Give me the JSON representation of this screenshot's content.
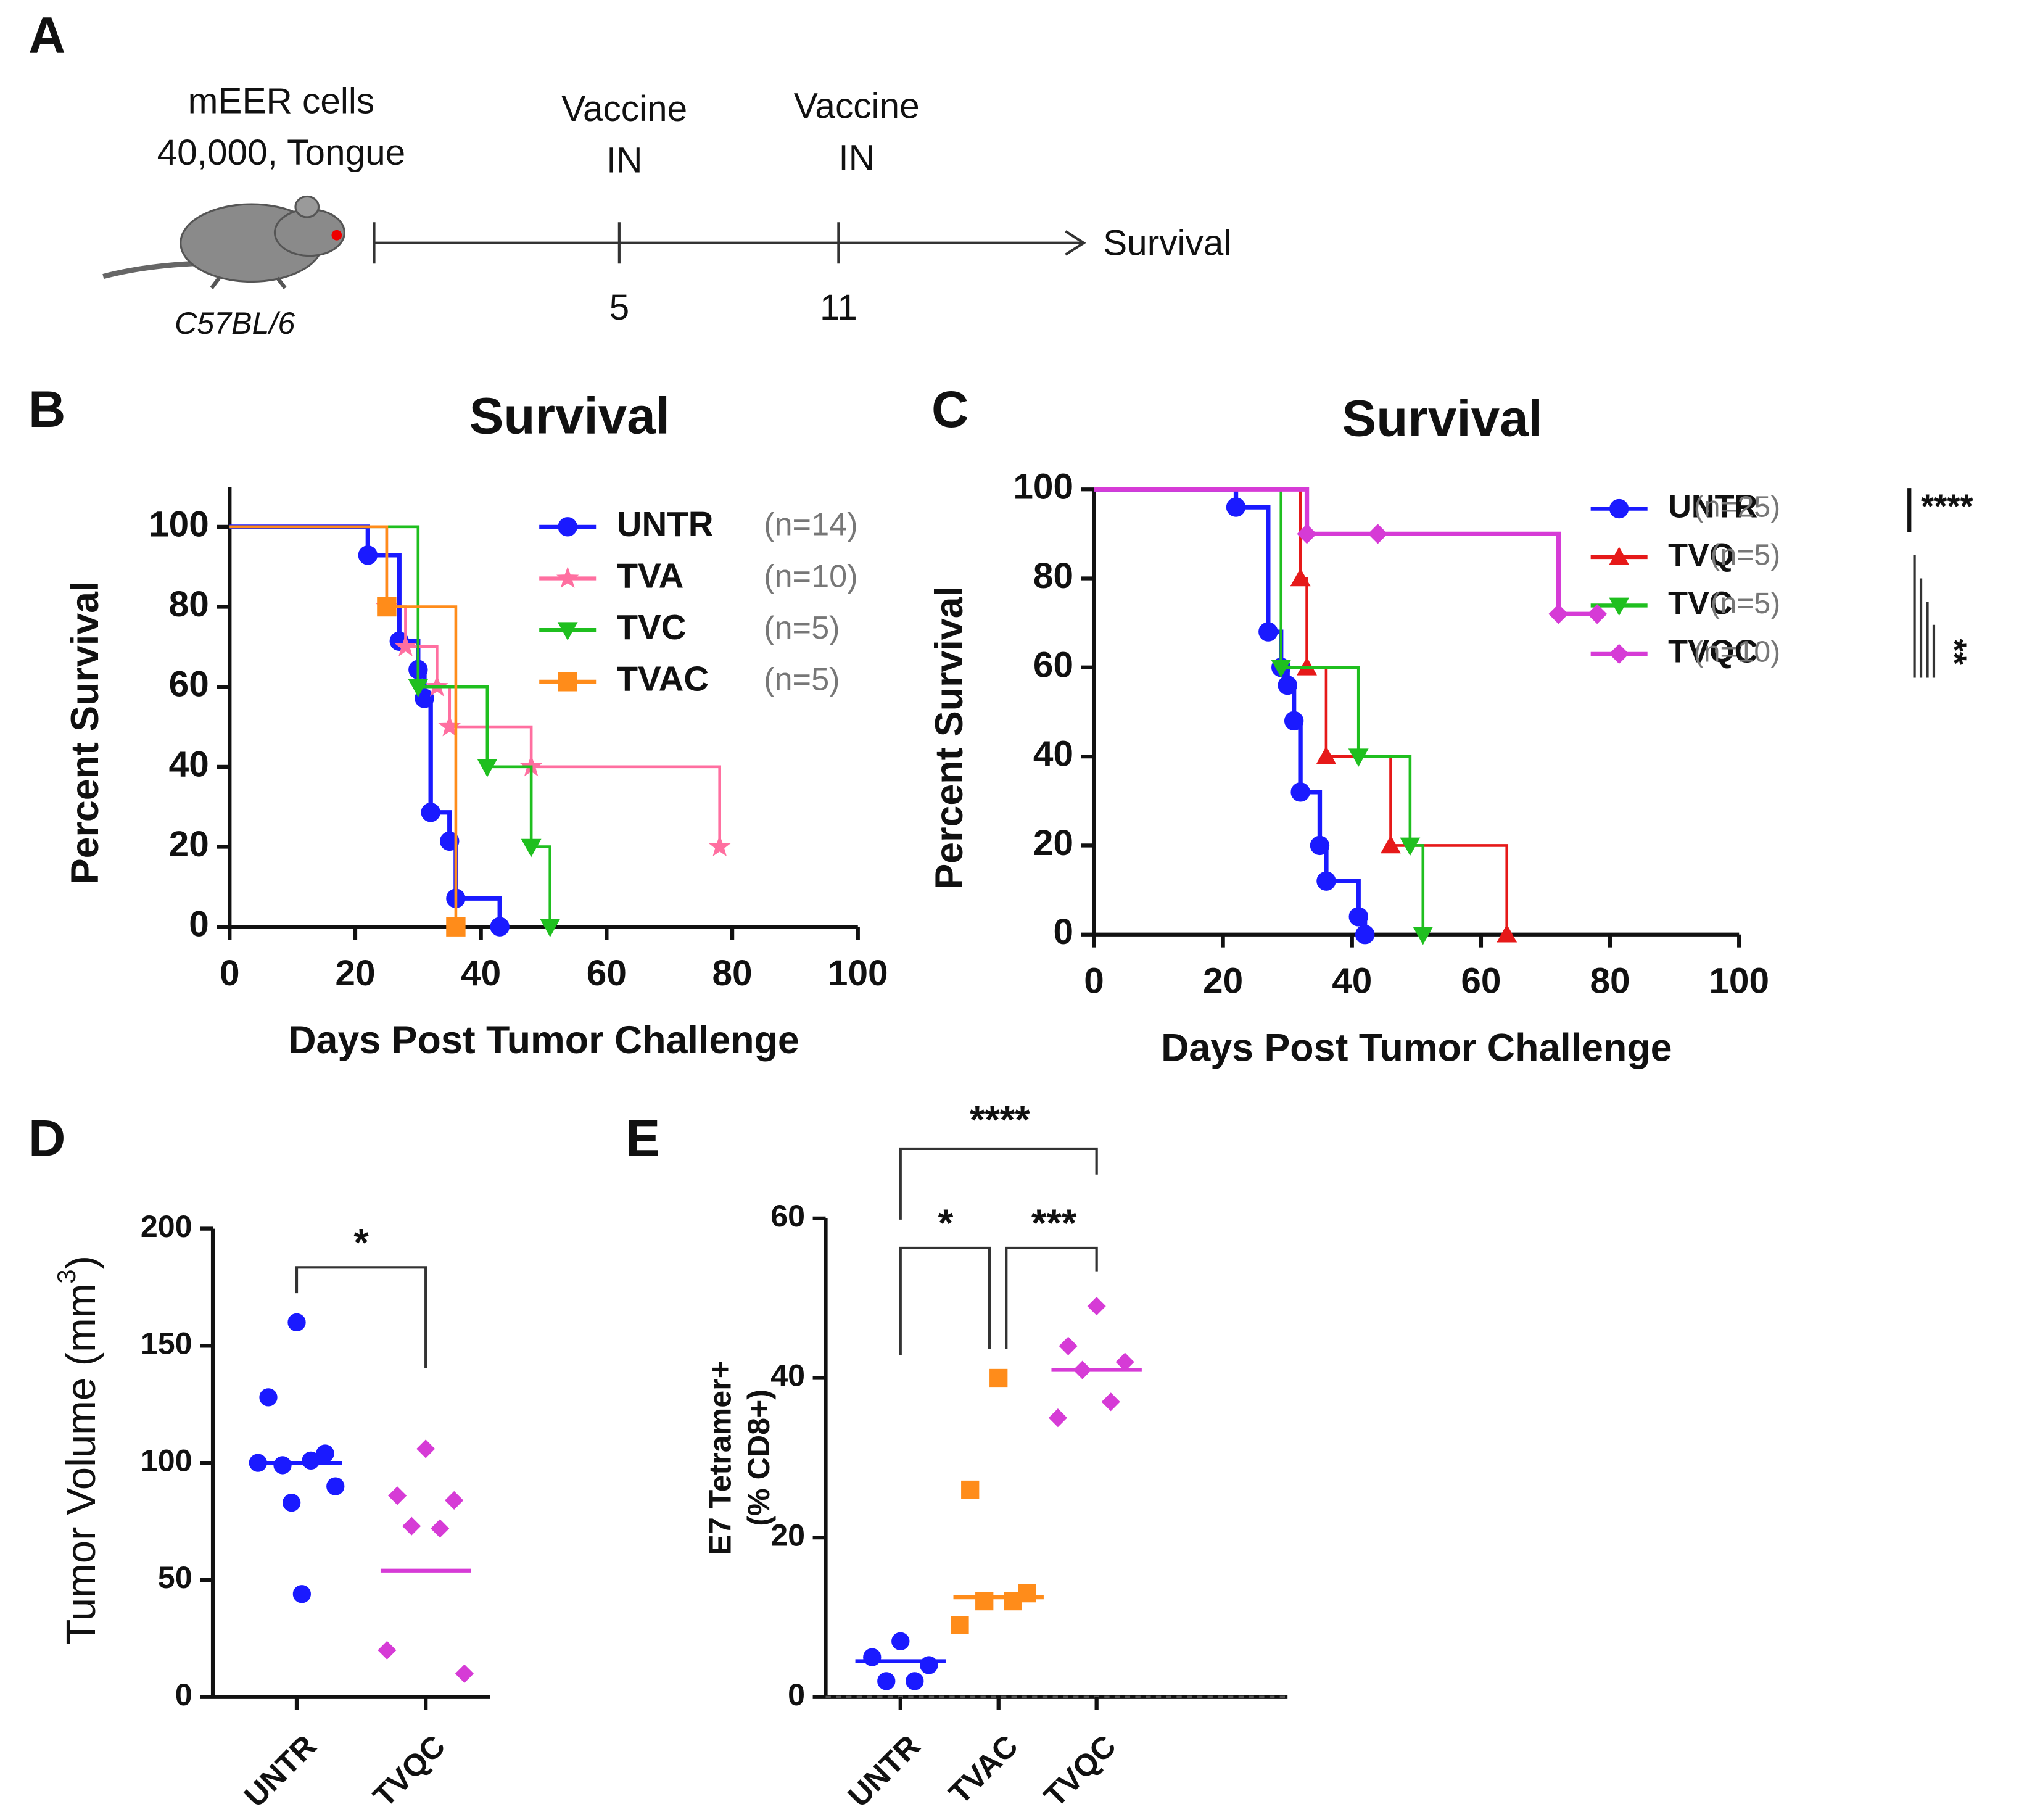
{
  "panels": [
    "A",
    "B",
    "C",
    "D",
    "E"
  ],
  "diagram": {
    "cells": [
      "mEER cells",
      "40,000, Tongue"
    ],
    "strain": "C57BL/6",
    "events": [
      {
        "label": [
          "Vaccine",
          "IN"
        ],
        "day": "5"
      },
      {
        "label": [
          "Vaccine",
          "IN"
        ],
        "day": "11"
      }
    ],
    "endpoint": "Survival"
  },
  "chart_data": [
    {
      "type": "survival",
      "title": "Survival",
      "x_label": "Days Post Tumor Challenge",
      "y_label": "Percent Survival",
      "xlim": [
        0,
        100
      ],
      "xticks": [
        0,
        20,
        40,
        60,
        80,
        100
      ],
      "ylim": [
        0,
        110
      ],
      "yticks": [
        0,
        20,
        40,
        60,
        80,
        100
      ],
      "legend": "upper right",
      "series": [
        {
          "name": "UNTR",
          "n_label": "(n=14)",
          "color": "#1a1aff",
          "marker": "circle",
          "x": [
            0,
            22,
            27,
            30,
            31,
            32,
            35,
            36,
            43
          ],
          "values": [
            100,
            92.9,
            71.4,
            64.3,
            57.1,
            28.6,
            21.4,
            7.1,
            0
          ]
        },
        {
          "name": "TVA",
          "n_label": "(n=10)",
          "color": "#ff6fa0",
          "marker": "star",
          "x": [
            0,
            25,
            28,
            33,
            35,
            48,
            78
          ],
          "values": [
            100,
            80,
            70,
            60,
            50,
            40,
            20
          ]
        },
        {
          "name": "TVC",
          "n_label": "(n=5)",
          "color": "#1fbf1f",
          "marker": "tri-down",
          "x": [
            0,
            30,
            41,
            48,
            51
          ],
          "values": [
            100,
            60,
            40,
            20,
            0
          ]
        },
        {
          "name": "TVAC",
          "n_label": "(n=5)",
          "color": "#ff8c1a",
          "marker": "square",
          "x": [
            0,
            25,
            36
          ],
          "values": [
            100,
            80,
            0
          ]
        }
      ]
    },
    {
      "type": "survival",
      "title": "Survival",
      "x_label": "Days Post Tumor Challenge",
      "y_label": "Percent Survival",
      "xlim": [
        0,
        100
      ],
      "xticks": [
        0,
        20,
        40,
        60,
        80,
        100
      ],
      "ylim": [
        0,
        100
      ],
      "yticks": [
        0,
        20,
        40,
        60,
        80,
        100
      ],
      "legend": "upper right",
      "annotations": [
        "****",
        "**"
      ],
      "series": [
        {
          "name": "UNTR",
          "n_label": "(n=25)",
          "color": "#1a1aff",
          "marker": "circle",
          "x": [
            0,
            22,
            27,
            29,
            30,
            31,
            32,
            35,
            36,
            41,
            42
          ],
          "values": [
            100,
            96,
            68,
            60,
            56,
            48,
            32,
            20,
            12,
            4,
            0
          ]
        },
        {
          "name": "TVQ",
          "n_label": "(n=5)",
          "color": "#e61919",
          "marker": "tri-up",
          "x": [
            0,
            32,
            33,
            36,
            46,
            64
          ],
          "values": [
            100,
            80,
            60,
            40,
            20,
            0
          ]
        },
        {
          "name": "TVC",
          "n_label": "(n=5)",
          "color": "#1fbf1f",
          "marker": "tri-down",
          "x": [
            0,
            29,
            41,
            49,
            51
          ],
          "values": [
            100,
            60,
            40,
            20,
            0
          ]
        },
        {
          "name": "TVQC",
          "n_label": "(n=10)",
          "color": "#d63bd6",
          "marker": "diamond",
          "x": [
            0,
            33,
            44,
            72,
            78
          ],
          "values": [
            100,
            90,
            90,
            72,
            72
          ]
        }
      ]
    },
    {
      "type": "strip",
      "y_label": [
        "Tumor Volume (mm",
        "3",
        ")"
      ],
      "ylim": [
        0,
        200
      ],
      "yticks": [
        0,
        50,
        100,
        150,
        200
      ],
      "annotations": [
        "*"
      ],
      "groups": [
        {
          "name": "UNTR",
          "color": "#1a1aff",
          "marker": "circle",
          "values": [
            160,
            128,
            104,
            99,
            101,
            100,
            90,
            83,
            44
          ],
          "line": 100
        },
        {
          "name": "TVQC",
          "color": "#d63bd6",
          "marker": "diamond",
          "values": [
            106,
            86,
            84,
            73,
            72,
            20,
            10
          ],
          "line": 54
        }
      ]
    },
    {
      "type": "strip",
      "y_label": [
        "E7 Tetramer+",
        "(% CD8+)"
      ],
      "ylim": [
        0,
        60
      ],
      "yticks": [
        0,
        20,
        40,
        60
      ],
      "annotations": [
        "****",
        "*",
        "***"
      ],
      "groups": [
        {
          "name": "UNTR",
          "color": "#1a1aff",
          "marker": "circle",
          "values": [
            7,
            5,
            4,
            2,
            2
          ],
          "line": 4.5
        },
        {
          "name": "TVAC",
          "color": "#ff8c1a",
          "marker": "square",
          "values": [
            40,
            26,
            13,
            12,
            12,
            9
          ],
          "line": 12.5
        },
        {
          "name": "TVQC",
          "color": "#d63bd6",
          "marker": "diamond",
          "values": [
            49,
            44,
            42,
            41,
            37,
            35
          ],
          "line": 41
        }
      ]
    }
  ]
}
